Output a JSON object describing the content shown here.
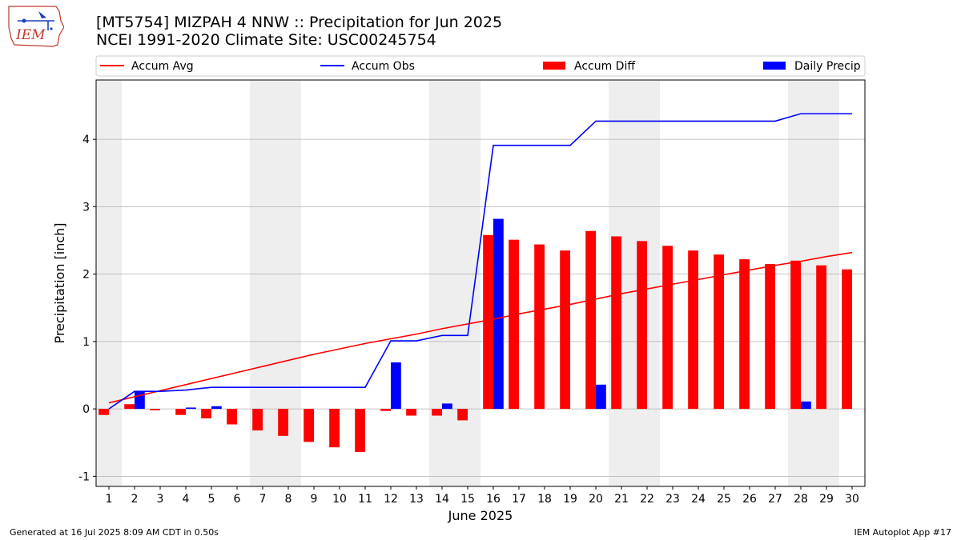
{
  "title_line1": "[MT5754] MIZPAH 4 NNW :: Precipitation for Jun 2025",
  "title_line2": "NCEI 1991-2020 Climate Site: USC00245754",
  "logo_text": "IEM",
  "footer_left": "Generated at 16 Jul 2025 8:09 AM CDT in 0.50s",
  "footer_right": "IEM Autoplot App #17",
  "colors": {
    "accum_avg": "#ff0000",
    "accum_obs": "#0000ff",
    "accum_diff": "#ff0000",
    "daily_precip": "#0000ff",
    "weekend_shade": "#eeeeee",
    "grid": "#b0b0b0"
  },
  "chart_data": {
    "type": "bar",
    "xlabel": "June 2025",
    "ylabel": "Precipitation [inch]",
    "ylim": [
      -1.15,
      4.88
    ],
    "xlim": [
      0.5,
      30.5
    ],
    "yticks": [
      -1,
      0,
      1,
      2,
      3,
      4
    ],
    "grid": true,
    "legend_position": "top (above plot, 4 columns)",
    "categories": [
      "1",
      "2",
      "3",
      "4",
      "5",
      "6",
      "7",
      "8",
      "9",
      "10",
      "11",
      "12",
      "13",
      "14",
      "15",
      "16",
      "17",
      "18",
      "19",
      "20",
      "21",
      "22",
      "23",
      "24",
      "25",
      "26",
      "27",
      "28",
      "29",
      "30"
    ],
    "shaded_weekend_days": [
      [
        1
      ],
      [
        7,
        8
      ],
      [
        14,
        15
      ],
      [
        21,
        22
      ],
      [
        28,
        29
      ]
    ],
    "series": [
      {
        "name": "Accum Avg",
        "kind": "line",
        "values": [
          0.09,
          0.18,
          0.27,
          0.36,
          0.45,
          0.54,
          0.63,
          0.72,
          0.81,
          0.89,
          0.97,
          1.04,
          1.11,
          1.19,
          1.26,
          1.33,
          1.41,
          1.48,
          1.55,
          1.63,
          1.71,
          1.78,
          1.85,
          1.92,
          1.99,
          2.06,
          2.13,
          2.19,
          2.26,
          2.32
        ]
      },
      {
        "name": "Accum Obs",
        "kind": "line",
        "values": [
          0.0,
          0.26,
          0.26,
          0.28,
          0.32,
          0.32,
          0.32,
          0.32,
          0.32,
          0.32,
          0.32,
          1.01,
          1.01,
          1.09,
          1.09,
          3.91,
          3.91,
          3.91,
          3.91,
          4.27,
          4.27,
          4.27,
          4.27,
          4.27,
          4.27,
          4.27,
          4.27,
          4.38,
          4.38,
          4.38
        ]
      },
      {
        "name": "Accum Diff",
        "kind": "bar",
        "values": [
          -0.09,
          0.07,
          -0.02,
          -0.09,
          -0.14,
          -0.23,
          -0.32,
          -0.4,
          -0.49,
          -0.57,
          -0.64,
          -0.03,
          -0.1,
          -0.1,
          -0.17,
          2.58,
          2.51,
          2.44,
          2.35,
          2.64,
          2.56,
          2.49,
          2.42,
          2.35,
          2.29,
          2.22,
          2.15,
          2.2,
          2.13,
          2.07
        ]
      },
      {
        "name": "Daily Precip",
        "kind": "bar",
        "values": [
          0.0,
          0.26,
          0.0,
          0.02,
          0.04,
          0.0,
          0.0,
          0.0,
          0.0,
          0.0,
          0.0,
          0.69,
          0.0,
          0.08,
          0.0,
          2.82,
          0.0,
          0.0,
          0.0,
          0.36,
          0.0,
          0.0,
          0.0,
          0.0,
          0.0,
          0.0,
          0.0,
          0.11,
          0.0,
          0.0
        ]
      }
    ]
  }
}
